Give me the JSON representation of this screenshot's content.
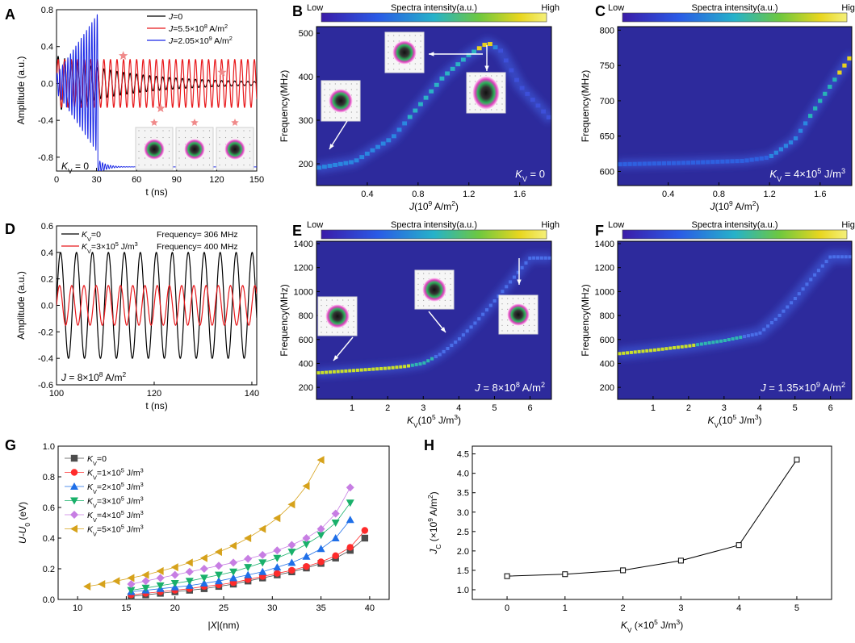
{
  "colorbar": {
    "low": "Low",
    "high": "High",
    "title": "Spectra intensity(a.u.)"
  },
  "chart_data": [
    {
      "id": "A",
      "type": "line",
      "panel_label": "A",
      "xlabel": "t (ns)",
      "ylabel": "Amplitude (a.u.)",
      "xlim": [
        0,
        150
      ],
      "ylim": [
        -0.95,
        0.8
      ],
      "xticks": [
        0,
        30,
        60,
        90,
        120,
        150
      ],
      "yticks": [
        -0.8,
        -0.4,
        0.0,
        0.4,
        0.8
      ],
      "ytick_labels": [
        "-0.8",
        "-0.4",
        "0.0",
        "0.4",
        "0.8"
      ],
      "annotation": "KV = 0",
      "series": [
        {
          "name": "J=0",
          "color": "#000000",
          "model": "decay",
          "amplitude": 0.3,
          "decay_tau": 55,
          "period_ns": 4.9
        },
        {
          "name": "J=5.5×10^8 A/m^2",
          "color": "#e8191c",
          "model": "steady",
          "amplitude": 0.26,
          "period_ns": 4.9
        },
        {
          "name": "J=2.05×10^9 A/m^2",
          "color": "#1a28e6",
          "model": "growth",
          "amplitude_start": 0.1,
          "amplitude_end": 0.76,
          "cutoff_ns": 31,
          "floor": -0.905,
          "period_ns": 2.0
        }
      ],
      "markers": [
        {
          "x": 50,
          "y": 0.3
        },
        {
          "x": 78,
          "y": -0.27
        },
        {
          "x": 124,
          "y": 0.12
        }
      ]
    },
    {
      "id": "B",
      "type": "heatmap",
      "panel_label": "B",
      "xlabel": "J(10^9 A/m^2)",
      "ylabel": "Frequency(MHz)",
      "xlim": [
        0.0,
        1.85
      ],
      "ylim": [
        150,
        515
      ],
      "xticks": [
        0.4,
        0.8,
        1.2,
        1.6
      ],
      "xtick_labels": [
        "0.4",
        "0.8",
        "1.2",
        "1.6"
      ],
      "yticks": [
        200,
        300,
        400,
        500
      ],
      "annotation": "KV = 0",
      "ridge": {
        "x": [
          0.0,
          0.3,
          0.6,
          0.8,
          1.0,
          1.2,
          1.35,
          1.45,
          1.6,
          1.85
        ],
        "y": [
          190,
          205,
          260,
          330,
          400,
          450,
          478,
          460,
          380,
          300
        ]
      }
    },
    {
      "id": "C",
      "type": "heatmap",
      "panel_label": "C",
      "xlabel": "J(10^9 A/m^2)",
      "ylabel": "Frequency(MHz)",
      "xlim": [
        0.0,
        1.85
      ],
      "ylim": [
        580,
        805
      ],
      "xticks": [
        0.4,
        0.8,
        1.2,
        1.6
      ],
      "xtick_labels": [
        "0.4",
        "0.8",
        "1.2",
        "1.6"
      ],
      "yticks": [
        600,
        650,
        700,
        750,
        800
      ],
      "annotation": "KV = 4×10^5 J/m^3",
      "ridge": {
        "x": [
          0.0,
          0.5,
          1.0,
          1.2,
          1.4,
          1.6,
          1.85
        ],
        "y": [
          610,
          612,
          615,
          620,
          645,
          700,
          765
        ]
      }
    },
    {
      "id": "D",
      "type": "line",
      "panel_label": "D",
      "xlabel": "t (ns)",
      "ylabel": "Amplitude (a.u.)",
      "xlim": [
        100,
        141
      ],
      "ylim": [
        -0.6,
        0.6
      ],
      "xticks": [
        100,
        120,
        140
      ],
      "yticks": [
        -0.6,
        -0.4,
        -0.2,
        0.0,
        0.2,
        0.4,
        0.6
      ],
      "ytick_labels": [
        "-0.6",
        "-0.4",
        "-0.2",
        "0.0",
        "0.2",
        "0.4",
        "0.6"
      ],
      "annotation": "J = 8×10^8 A/m^2",
      "series": [
        {
          "name": "KV=0",
          "freq_label": "Frequency= 306 MHz",
          "color": "#000000",
          "amplitude": 0.4,
          "period_ns": 3.27
        },
        {
          "name": "KV=3×10^5 J/m^3",
          "freq_label": "Frequency= 400 MHz",
          "color": "#e8191c",
          "amplitude": 0.15,
          "period_ns": 2.5
        }
      ]
    },
    {
      "id": "E",
      "type": "heatmap",
      "panel_label": "E",
      "xlabel": "KV(10^5 J/m^3)",
      "ylabel": "Frequency(MHz)",
      "xlim": [
        0.0,
        6.6
      ],
      "ylim": [
        100,
        1420
      ],
      "xticks": [
        1,
        2,
        3,
        4,
        5,
        6
      ],
      "yticks": [
        200,
        400,
        600,
        800,
        1000,
        1200,
        1400
      ],
      "annotation": "J = 8×10^8 A/m^2",
      "ridge": {
        "x": [
          0.0,
          1.0,
          2.0,
          2.5,
          3.0,
          3.5,
          4.0,
          4.5,
          5.0,
          5.5,
          6.0
        ],
        "y": [
          320,
          340,
          360,
          375,
          400,
          480,
          600,
          750,
          920,
          1100,
          1280
        ]
      }
    },
    {
      "id": "F",
      "type": "heatmap",
      "panel_label": "F",
      "xlabel": "KV(10^5 J/m^3)",
      "ylabel": "Frequency(MHz)",
      "xlim": [
        0.0,
        6.6
      ],
      "ylim": [
        100,
        1420
      ],
      "xticks": [
        1,
        2,
        3,
        4,
        5,
        6
      ],
      "yticks": [
        200,
        400,
        600,
        800,
        1000,
        1200,
        1400
      ],
      "annotation": "J = 1.35×10^9 A/m^2",
      "ridge": {
        "x": [
          0.0,
          1.0,
          2.0,
          3.0,
          4.0,
          4.5,
          5.0,
          5.5,
          6.0
        ],
        "y": [
          480,
          510,
          545,
          590,
          650,
          780,
          940,
          1120,
          1290
        ]
      }
    },
    {
      "id": "G",
      "type": "line",
      "panel_label": "G",
      "xlabel": "|X|(nm)",
      "ylabel": "U-U0 (eV)",
      "xlim": [
        8,
        42
      ],
      "ylim": [
        0.0,
        1.0
      ],
      "xticks": [
        10,
        15,
        20,
        25,
        30,
        35,
        40
      ],
      "yticks": [
        0.0,
        0.2,
        0.4,
        0.6,
        0.8,
        1.0
      ],
      "ytick_labels": [
        "0.0",
        "0.2",
        "0.4",
        "0.6",
        "0.8",
        "1.0"
      ],
      "series": [
        {
          "name": "KV=0",
          "color": "#4d4d4d",
          "marker": "square",
          "x": [
            15.5,
            17,
            18.5,
            20,
            21.5,
            23,
            24.5,
            26,
            27.5,
            29,
            30.5,
            32,
            33.5,
            35,
            36.5,
            38,
            39.5
          ],
          "y": [
            0.02,
            0.03,
            0.04,
            0.05,
            0.06,
            0.07,
            0.085,
            0.1,
            0.12,
            0.14,
            0.16,
            0.18,
            0.205,
            0.235,
            0.27,
            0.32,
            0.4
          ]
        },
        {
          "name": "KV=1×10^5 J/m^3",
          "color": "#ff2b2b",
          "marker": "circle",
          "x": [
            15.5,
            17,
            18.5,
            20,
            21.5,
            23,
            24.5,
            26,
            27.5,
            29,
            30.5,
            32,
            33.5,
            35,
            36.5,
            38,
            39.5
          ],
          "y": [
            0.03,
            0.04,
            0.05,
            0.06,
            0.07,
            0.085,
            0.095,
            0.11,
            0.13,
            0.15,
            0.17,
            0.19,
            0.215,
            0.245,
            0.285,
            0.34,
            0.45
          ]
        },
        {
          "name": "KV=2×10^5 J/m^3",
          "color": "#1f6fe8",
          "marker": "triangle-up",
          "x": [
            15.5,
            17,
            18.5,
            20,
            21.5,
            23,
            24.5,
            26,
            27.5,
            29,
            30.5,
            32,
            33.5,
            35,
            36.5,
            38
          ],
          "y": [
            0.05,
            0.06,
            0.07,
            0.08,
            0.09,
            0.105,
            0.12,
            0.14,
            0.16,
            0.18,
            0.21,
            0.24,
            0.28,
            0.33,
            0.4,
            0.52
          ]
        },
        {
          "name": "KV=3×10^5 J/m^3",
          "color": "#19b06a",
          "marker": "triangle-down",
          "x": [
            15.5,
            17,
            18.5,
            20,
            21.5,
            23,
            24.5,
            26,
            27.5,
            29,
            30.5,
            32,
            33.5,
            35,
            36.5,
            38
          ],
          "y": [
            0.06,
            0.075,
            0.09,
            0.105,
            0.12,
            0.14,
            0.16,
            0.18,
            0.21,
            0.24,
            0.27,
            0.31,
            0.36,
            0.42,
            0.5,
            0.63
          ]
        },
        {
          "name": "KV=4×10^5 J/m^3",
          "color": "#c77ee3",
          "marker": "diamond",
          "x": [
            15.5,
            17,
            18.5,
            20,
            21.5,
            23,
            24.5,
            26,
            27.5,
            29,
            30.5,
            32,
            33.5,
            35,
            36.5,
            38
          ],
          "y": [
            0.1,
            0.12,
            0.14,
            0.16,
            0.18,
            0.2,
            0.22,
            0.24,
            0.265,
            0.29,
            0.32,
            0.355,
            0.4,
            0.46,
            0.56,
            0.73
          ]
        },
        {
          "name": "KV=5×10^5 J/m^3",
          "color": "#d6a21b",
          "marker": "triangle-left",
          "x": [
            11,
            12.5,
            14,
            15.5,
            17,
            18.5,
            20,
            21.5,
            23,
            24.5,
            26,
            27.5,
            29,
            30.5,
            32,
            33.5,
            35
          ],
          "y": [
            0.085,
            0.1,
            0.12,
            0.14,
            0.16,
            0.185,
            0.21,
            0.24,
            0.27,
            0.31,
            0.35,
            0.4,
            0.46,
            0.53,
            0.62,
            0.74,
            0.91
          ]
        }
      ]
    },
    {
      "id": "H",
      "type": "line",
      "panel_label": "H",
      "xlabel": "KV (×10^5 J/m^3)",
      "ylabel": "JC (×10^9 A/m^2)",
      "xlim": [
        -0.6,
        5.6
      ],
      "ylim": [
        0.75,
        4.7
      ],
      "xticks": [
        0,
        1,
        2,
        3,
        4,
        5
      ],
      "yticks": [
        1.0,
        1.5,
        2.0,
        2.5,
        3.0,
        3.5,
        4.0,
        4.5
      ],
      "ytick_labels": [
        "1.0",
        "1.5",
        "2.0",
        "2.5",
        "3.0",
        "3.5",
        "4.0",
        "4.5"
      ],
      "series": [
        {
          "name": "JC",
          "color": "#000000",
          "marker": "open-square",
          "x": [
            0,
            1,
            2,
            3,
            4,
            5
          ],
          "y": [
            1.35,
            1.4,
            1.5,
            1.75,
            2.15,
            4.35
          ]
        }
      ]
    }
  ]
}
